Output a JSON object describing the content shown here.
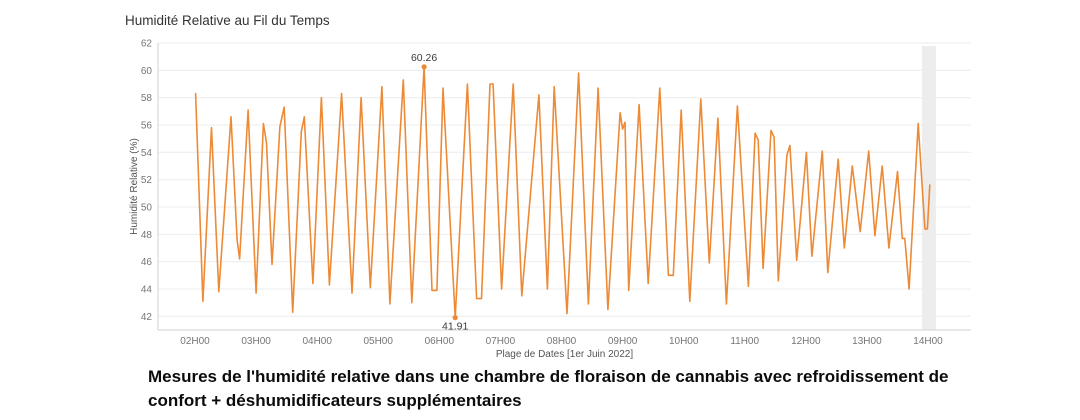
{
  "title": "Humidité Relative au Fil du Temps",
  "caption": "Mesures de l'humidité relative dans une chambre de floraison de cannabis avec refroidissement de confort + déshumidificateurs supplémentaires",
  "colors": {
    "line": "#ed8a36",
    "grid": "#ececec",
    "axis_line": "#d2d2d2",
    "tick_text": "#767676",
    "axis_title_text": "#555555",
    "annotation_text": "#3c3c3c",
    "highlight_band": "#ededed"
  },
  "chart_data": {
    "type": "line",
    "title": "Humidité Relative au Fil du Temps",
    "xlabel": "Plage de Dates [1er Juin 2022]",
    "ylabel": "Humidité Relative (%)",
    "ylim": [
      41,
      62
    ],
    "y_ticks": [
      42,
      44,
      46,
      48,
      50,
      52,
      54,
      56,
      58,
      60,
      62
    ],
    "x_ticks": [
      {
        "hour": 2,
        "label": "02H00"
      },
      {
        "hour": 3,
        "label": "03H00"
      },
      {
        "hour": 4,
        "label": "04H00"
      },
      {
        "hour": 5,
        "label": "05H00"
      },
      {
        "hour": 6,
        "label": "06H00"
      },
      {
        "hour": 7,
        "label": "07H00"
      },
      {
        "hour": 8,
        "label": "08H00"
      },
      {
        "hour": 9,
        "label": "09H00"
      },
      {
        "hour": 10,
        "label": "10H00"
      },
      {
        "hour": 11,
        "label": "11H00"
      },
      {
        "hour": 12,
        "label": "12H00"
      },
      {
        "hour": 13,
        "label": "13H00"
      },
      {
        "hour": 14,
        "label": "14H00"
      }
    ],
    "grid": "horizontal",
    "legend": "none",
    "highlight_band": {
      "t_start": 13.9,
      "t_end": 14.13
    },
    "annotations": [
      {
        "label": "60.26",
        "t": 5.75,
        "v": 60.26,
        "position": "above"
      },
      {
        "label": "41.91",
        "t": 6.26,
        "v": 41.91,
        "position": "below"
      }
    ],
    "series": [
      {
        "name": "Humidité Relative (%)",
        "points": [
          [
            2.01,
            58.3
          ],
          [
            2.13,
            43.1
          ],
          [
            2.27,
            55.8
          ],
          [
            2.39,
            43.8
          ],
          [
            2.59,
            56.6
          ],
          [
            2.69,
            47.6
          ],
          [
            2.73,
            46.2
          ],
          [
            2.87,
            57.1
          ],
          [
            3.0,
            43.7
          ],
          [
            3.12,
            56.1
          ],
          [
            3.17,
            54.7
          ],
          [
            3.26,
            45.8
          ],
          [
            3.39,
            55.9
          ],
          [
            3.46,
            57.3
          ],
          [
            3.6,
            42.3
          ],
          [
            3.74,
            55.5
          ],
          [
            3.79,
            56.6
          ],
          [
            3.93,
            44.4
          ],
          [
            4.07,
            58.0
          ],
          [
            4.2,
            44.3
          ],
          [
            4.4,
            58.3
          ],
          [
            4.57,
            43.7
          ],
          [
            4.72,
            58.0
          ],
          [
            4.87,
            44.1
          ],
          [
            5.06,
            58.8
          ],
          [
            5.19,
            42.9
          ],
          [
            5.41,
            59.3
          ],
          [
            5.55,
            43.0
          ],
          [
            5.75,
            60.26
          ],
          [
            5.88,
            43.9
          ],
          [
            5.96,
            43.9
          ],
          [
            6.06,
            58.7
          ],
          [
            6.26,
            41.91
          ],
          [
            6.46,
            59.0
          ],
          [
            6.61,
            43.3
          ],
          [
            6.69,
            43.3
          ],
          [
            6.83,
            59.0
          ],
          [
            6.88,
            59.0
          ],
          [
            7.02,
            44.0
          ],
          [
            7.21,
            59.0
          ],
          [
            7.35,
            43.5
          ],
          [
            7.63,
            58.2
          ],
          [
            7.77,
            44.0
          ],
          [
            7.88,
            58.8
          ],
          [
            8.09,
            42.2
          ],
          [
            8.28,
            59.8
          ],
          [
            8.44,
            42.9
          ],
          [
            8.6,
            58.7
          ],
          [
            8.76,
            42.5
          ],
          [
            8.96,
            56.9
          ],
          [
            9.0,
            55.7
          ],
          [
            9.04,
            56.2
          ],
          [
            9.1,
            43.9
          ],
          [
            9.27,
            57.5
          ],
          [
            9.42,
            44.4
          ],
          [
            9.61,
            58.7
          ],
          [
            9.75,
            45.0
          ],
          [
            9.83,
            45.0
          ],
          [
            9.96,
            57.1
          ],
          [
            10.1,
            43.1
          ],
          [
            10.28,
            57.9
          ],
          [
            10.42,
            45.9
          ],
          [
            10.56,
            56.5
          ],
          [
            10.7,
            42.9
          ],
          [
            10.88,
            57.4
          ],
          [
            11.06,
            44.2
          ],
          [
            11.17,
            55.4
          ],
          [
            11.22,
            54.9
          ],
          [
            11.3,
            45.5
          ],
          [
            11.43,
            55.6
          ],
          [
            11.48,
            55.1
          ],
          [
            11.55,
            44.6
          ],
          [
            11.69,
            53.8
          ],
          [
            11.74,
            54.5
          ],
          [
            11.85,
            46.1
          ],
          [
            12.01,
            54.0
          ],
          [
            12.1,
            46.4
          ],
          [
            12.27,
            54.1
          ],
          [
            12.36,
            45.2
          ],
          [
            12.53,
            53.5
          ],
          [
            12.63,
            47.0
          ],
          [
            12.76,
            53.0
          ],
          [
            12.89,
            48.2
          ],
          [
            13.03,
            54.1
          ],
          [
            13.13,
            47.9
          ],
          [
            13.25,
            53.0
          ],
          [
            13.36,
            47.0
          ],
          [
            13.5,
            52.6
          ],
          [
            13.58,
            47.7
          ],
          [
            13.62,
            47.7
          ],
          [
            13.69,
            44.0
          ],
          [
            13.84,
            56.1
          ],
          [
            13.95,
            48.4
          ],
          [
            13.99,
            48.4
          ],
          [
            14.03,
            51.6
          ]
        ]
      }
    ]
  }
}
